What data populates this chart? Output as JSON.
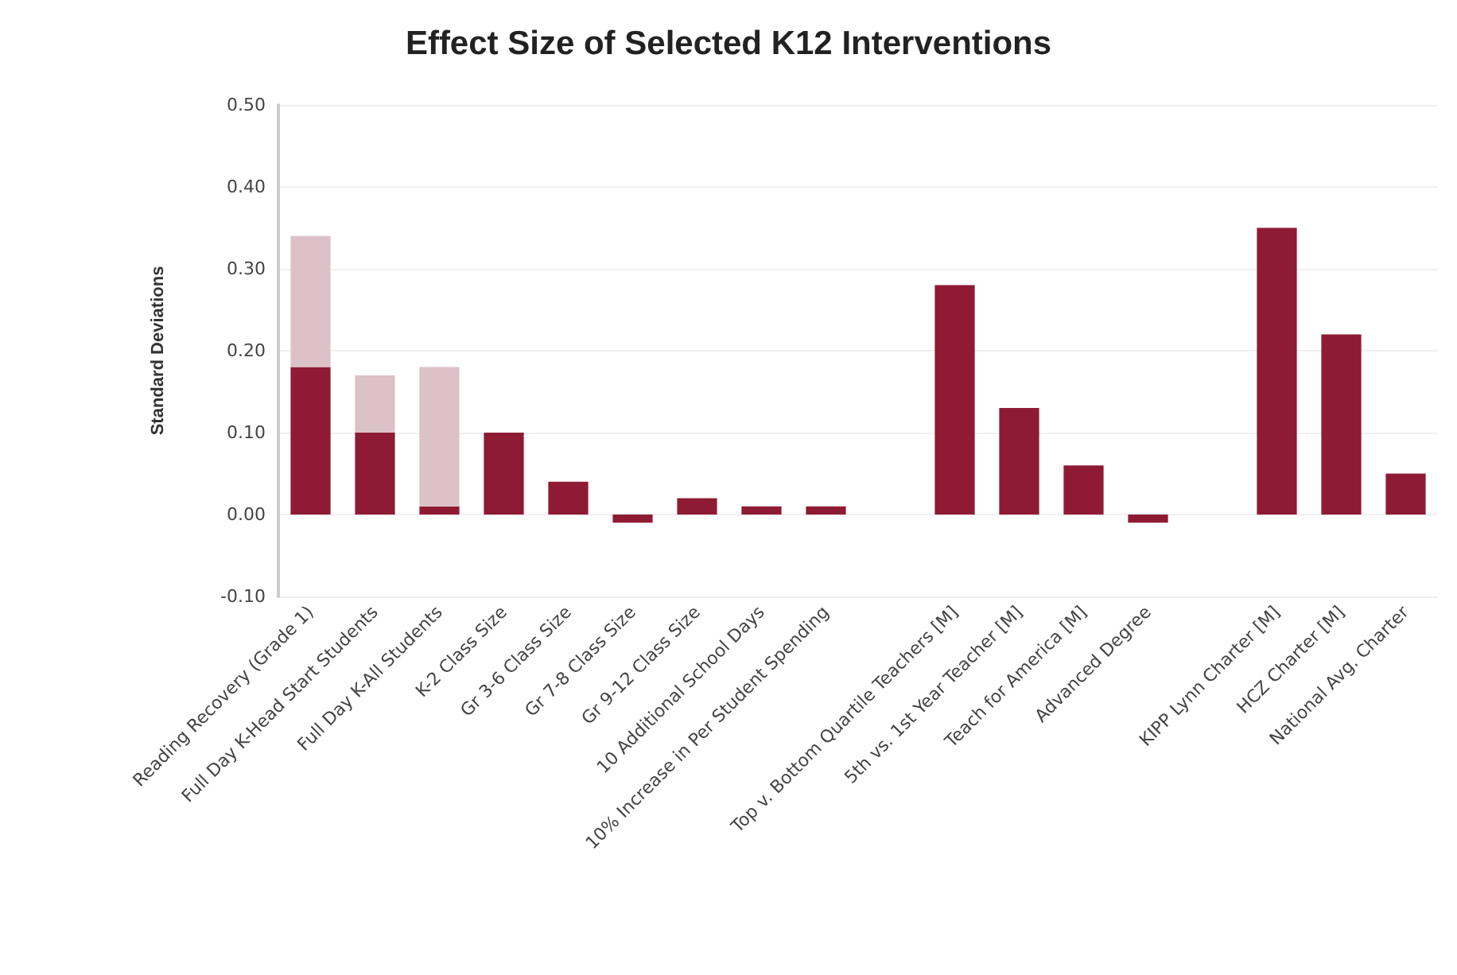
{
  "chart_data": {
    "type": "bar",
    "title": "Effect Size of Selected K12 Interventions",
    "ylabel": "Standard Deviations",
    "categories": [
      "Reading Recovery (Grade 1)",
      "Full Day K-Head Start Students",
      "Full Day K-All Students",
      "K-2 Class Size",
      "Gr 3-6 Class Size",
      "Gr 7-8 Class Size",
      "Gr 9-12 Class Size",
      "10 Additional School Days",
      "10% Increase in Per Student Spending",
      null,
      "Top v. Bottom Quartile Teachers [M]",
      "5th vs. 1st Year Teacher [M]",
      "Teach for America [M]",
      "Advanced Degree",
      null,
      "KIPP Lynn Charter [M]",
      "HCZ Charter [M]",
      "National Avg. Charter"
    ],
    "stacked": true,
    "series": [
      {
        "color": "#8e1b33",
        "values": [
          0.18,
          0.1,
          0.01,
          0.1,
          0.04,
          -0.01,
          0.02,
          0.01,
          0.01,
          null,
          0.28,
          0.13,
          0.06,
          -0.01,
          null,
          0.35,
          0.22,
          0.05
        ]
      },
      {
        "color": "#dcc1c9",
        "values": [
          0.16,
          0.07,
          0.17,
          null,
          null,
          null,
          null,
          null,
          null,
          null,
          null,
          null,
          null,
          null,
          null,
          null,
          null,
          null
        ]
      }
    ],
    "ylim": [
      -0.1,
      0.5
    ],
    "yticks": [
      {
        "value": -0.1,
        "label": "-0.10"
      },
      {
        "value": 0,
        "label": "0.00"
      },
      {
        "value": 0.1,
        "label": "0.10"
      },
      {
        "value": 0.2,
        "label": "0.20"
      },
      {
        "value": 0.3,
        "label": "0.30"
      },
      {
        "value": 0.4,
        "label": "0.40"
      },
      {
        "value": 0.5,
        "label": "0.50"
      }
    ],
    "grid": "y",
    "legend": false
  }
}
